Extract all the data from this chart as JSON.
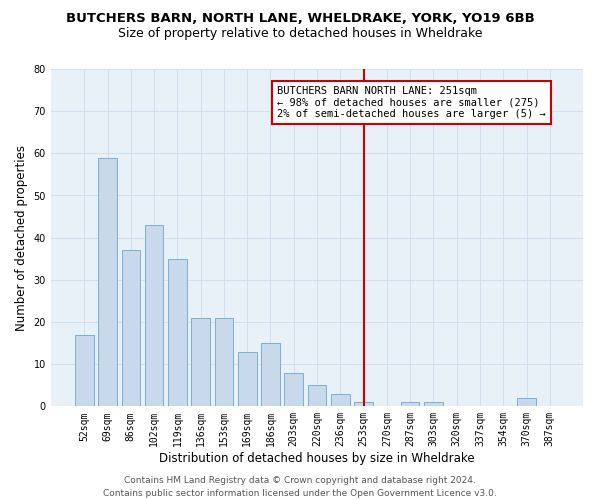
{
  "title": "BUTCHERS BARN, NORTH LANE, WHELDRAKE, YORK, YO19 6BB",
  "subtitle": "Size of property relative to detached houses in Wheldrake",
  "xlabel": "Distribution of detached houses by size in Wheldrake",
  "ylabel": "Number of detached properties",
  "categories": [
    "52sqm",
    "69sqm",
    "86sqm",
    "102sqm",
    "119sqm",
    "136sqm",
    "153sqm",
    "169sqm",
    "186sqm",
    "203sqm",
    "220sqm",
    "236sqm",
    "253sqm",
    "270sqm",
    "287sqm",
    "303sqm",
    "320sqm",
    "337sqm",
    "354sqm",
    "370sqm",
    "387sqm"
  ],
  "values": [
    17,
    59,
    37,
    43,
    35,
    21,
    21,
    13,
    15,
    8,
    5,
    3,
    1,
    0,
    1,
    1,
    0,
    0,
    0,
    2,
    0
  ],
  "bar_color": "#c8d9ec",
  "bar_edge_color": "#7bafd4",
  "vline_x_index": 12,
  "vline_color": "#cc0000",
  "annotation_line1": "BUTCHERS BARN NORTH LANE: 251sqm",
  "annotation_line2": "← 98% of detached houses are smaller (275)",
  "annotation_line3": "2% of semi-detached houses are larger (5) →",
  "annotation_box_color": "#ffffff",
  "annotation_box_edge_color": "#cc0000",
  "ylim": [
    0,
    80
  ],
  "yticks": [
    0,
    10,
    20,
    30,
    40,
    50,
    60,
    70,
    80
  ],
  "grid_color": "#d0dff0",
  "background_color": "#e8f0f8",
  "footer_line1": "Contains HM Land Registry data © Crown copyright and database right 2024.",
  "footer_line2": "Contains public sector information licensed under the Open Government Licence v3.0.",
  "title_fontsize": 9.5,
  "subtitle_fontsize": 9,
  "tick_fontsize": 7,
  "ylabel_fontsize": 8.5,
  "xlabel_fontsize": 8.5,
  "annotation_fontsize": 7.5,
  "footer_fontsize": 6.5
}
